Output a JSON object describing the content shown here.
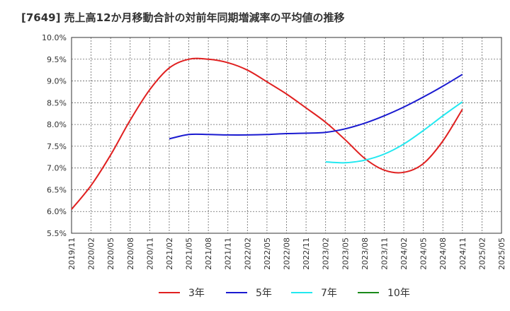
{
  "title": "[7649]  売上高12か月移動合計の対前年同期増減率の平均値の推移",
  "colors": {
    "3年": "#e02020",
    "5年": "#1a1ad0",
    "7年": "#22e8f0",
    "10年": "#1a8a1a"
  },
  "chart_data": {
    "type": "line",
    "title": "[7649]  売上高12か月移動合計の対前年同期増減率の平均値の推移",
    "xlabel": "",
    "ylabel": "",
    "ylim": [
      5.5,
      10.0
    ],
    "y_ticks": [
      "10.0%",
      "9.5%",
      "9.0%",
      "8.5%",
      "8.0%",
      "7.5%",
      "7.0%",
      "6.5%",
      "6.0%",
      "5.5%"
    ],
    "x_ticks": [
      "2019/11",
      "2020/02",
      "2020/05",
      "2020/08",
      "2020/11",
      "2021/02",
      "2021/05",
      "2021/08",
      "2021/11",
      "2022/02",
      "2022/05",
      "2022/08",
      "2022/11",
      "2023/02",
      "2023/05",
      "2023/08",
      "2023/11",
      "2024/02",
      "2024/05",
      "2024/08",
      "2024/11",
      "2025/02",
      "2025/05"
    ],
    "grid": true,
    "legend_position": "bottom",
    "series": [
      {
        "name": "3年",
        "points": [
          [
            "2019/11",
            6.05
          ],
          [
            "2020/02",
            6.6
          ],
          [
            "2020/05",
            7.3
          ],
          [
            "2020/08",
            8.1
          ],
          [
            "2020/11",
            8.8
          ],
          [
            "2021/02",
            9.3
          ],
          [
            "2021/05",
            9.5
          ],
          [
            "2021/08",
            9.5
          ],
          [
            "2021/11",
            9.42
          ],
          [
            "2022/02",
            9.25
          ],
          [
            "2022/05",
            8.98
          ],
          [
            "2022/08",
            8.7
          ],
          [
            "2022/11",
            8.38
          ],
          [
            "2023/02",
            8.05
          ],
          [
            "2023/05",
            7.65
          ],
          [
            "2023/08",
            7.22
          ],
          [
            "2023/11",
            6.95
          ],
          [
            "2024/02",
            6.9
          ],
          [
            "2024/05",
            7.1
          ],
          [
            "2024/08",
            7.62
          ],
          [
            "2024/11",
            8.35
          ]
        ]
      },
      {
        "name": "5年",
        "points": [
          [
            "2021/02",
            7.67
          ],
          [
            "2021/05",
            7.77
          ],
          [
            "2021/08",
            7.77
          ],
          [
            "2021/11",
            7.76
          ],
          [
            "2022/02",
            7.76
          ],
          [
            "2022/05",
            7.77
          ],
          [
            "2022/08",
            7.79
          ],
          [
            "2022/11",
            7.8
          ],
          [
            "2023/02",
            7.82
          ],
          [
            "2023/05",
            7.9
          ],
          [
            "2023/08",
            8.03
          ],
          [
            "2023/11",
            8.2
          ],
          [
            "2024/02",
            8.4
          ],
          [
            "2024/05",
            8.63
          ],
          [
            "2024/08",
            8.88
          ],
          [
            "2024/11",
            9.15
          ]
        ]
      },
      {
        "name": "7年",
        "points": [
          [
            "2023/02",
            7.14
          ],
          [
            "2023/05",
            7.12
          ],
          [
            "2023/08",
            7.18
          ],
          [
            "2023/11",
            7.32
          ],
          [
            "2024/02",
            7.55
          ],
          [
            "2024/05",
            7.86
          ],
          [
            "2024/08",
            8.2
          ],
          [
            "2024/11",
            8.52
          ]
        ]
      },
      {
        "name": "10年",
        "points": []
      }
    ]
  }
}
